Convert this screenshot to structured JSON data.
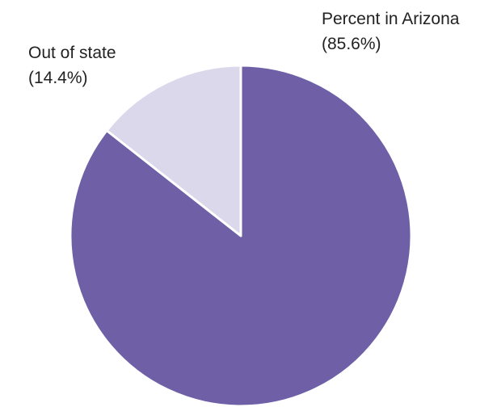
{
  "chart_data": {
    "type": "pie",
    "categories": [
      "Percent in Arizona",
      "Out of state"
    ],
    "values": [
      85.6,
      14.4
    ],
    "value_labels": [
      "(85.6%)",
      "(14.4%)"
    ],
    "colors": [
      "#6e5fa7",
      "#dcd8ec"
    ]
  }
}
